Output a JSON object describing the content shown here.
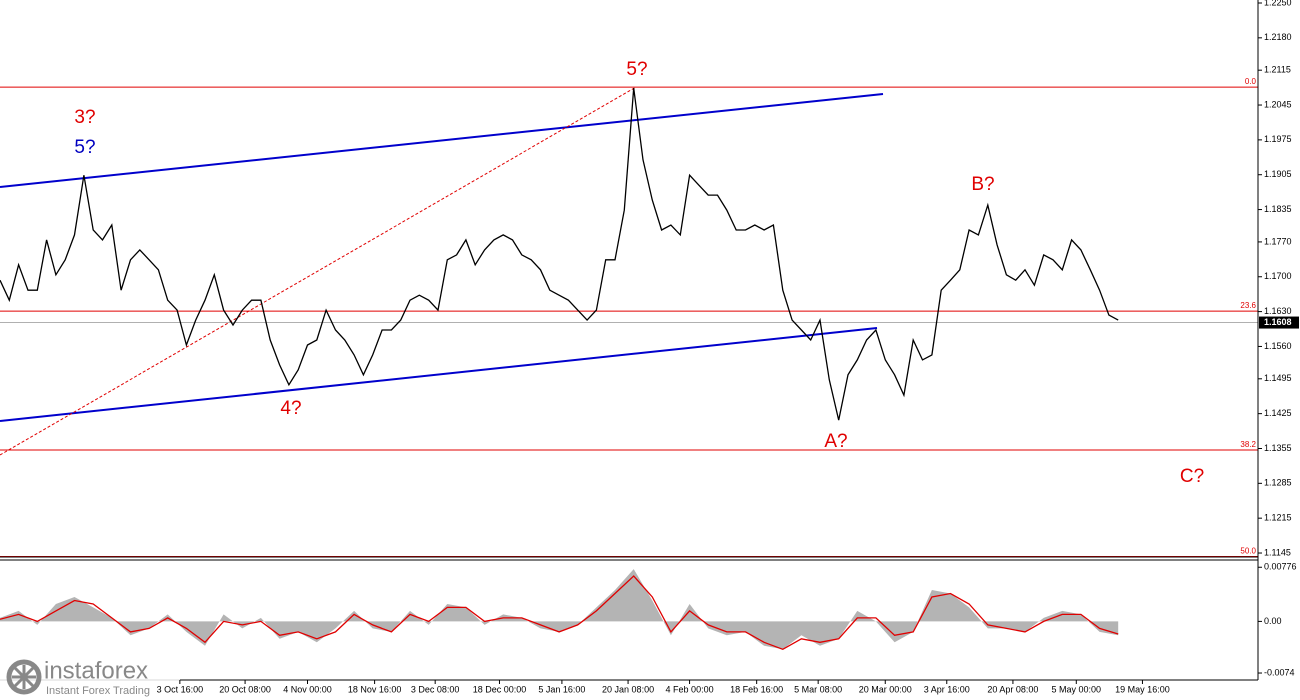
{
  "chart_data": [
    {
      "type": "line",
      "xlim": [
        0,
        135
      ],
      "xticks": [
        {
          "value": 19.3,
          "label": "3 Oct 16:00"
        },
        {
          "value": 26.3,
          "label": "20 Oct 08:00"
        },
        {
          "value": 33,
          "label": "4 Nov 00:00"
        },
        {
          "value": 40.2,
          "label": "18 Nov 16:00"
        },
        {
          "value": 46.7,
          "label": "3 Dec 08:00"
        },
        {
          "value": 53.6,
          "label": "18 Dec 00:00"
        },
        {
          "value": 60.3,
          "label": "5 Jan 16:00"
        },
        {
          "value": 67.4,
          "label": "20 Jan 08:00"
        },
        {
          "value": 74,
          "label": "4 Feb 00:00"
        },
        {
          "value": 81.2,
          "label": "18 Feb 16:00"
        },
        {
          "value": 87.8,
          "label": "5 Mar 08:00"
        },
        {
          "value": 95,
          "label": "20 Mar 00:00"
        },
        {
          "value": 101.6,
          "label": "3 Apr 16:00"
        },
        {
          "value": 108.7,
          "label": "20 Apr 08:00"
        },
        {
          "value": 115.5,
          "label": "5 May 00:00"
        },
        {
          "value": 122.6,
          "label": "19 May 16:00"
        }
      ],
      "ylim": [
        1.1137,
        1.2256
      ],
      "yticks": [
        {
          "value": 1.225,
          "label": "1.2250"
        },
        {
          "value": 1.218,
          "label": "1.2180"
        },
        1.2115,
        1.2045,
        1.1975,
        1.1905,
        1.1835,
        {
          "value": 1.177,
          "label": "1.1770"
        },
        {
          "value": 1.17,
          "label": "1.1700"
        },
        {
          "value": 1.163,
          "label": "1.1630"
        },
        {
          "value": 1.156,
          "label": "1.1560"
        },
        1.1495,
        1.1425,
        1.1355,
        1.1285,
        1.1215,
        1.1145
      ],
      "series": [
        {
          "color": "#000000",
          "values": [
            1.1693,
            1.1653,
            1.1724,
            1.1673,
            1.1673,
            1.1774,
            1.1704,
            1.1734,
            1.1784,
            1.1904,
            1.1794,
            1.1774,
            1.1804,
            1.1673,
            1.1734,
            1.1754,
            1.1734,
            1.1714,
            1.1653,
            1.1633,
            1.1563,
            1.1613,
            1.1653,
            1.1704,
            1.1633,
            1.1603,
            1.1633,
            1.1653,
            1.1653,
            1.1573,
            1.1523,
            1.1483,
            1.1513,
            1.1563,
            1.1573,
            1.1633,
            1.1593,
            1.1573,
            1.1543,
            1.1503,
            1.1543,
            1.1593,
            1.1593,
            1.1613,
            1.1653,
            1.1663,
            1.1653,
            1.1633,
            1.1734,
            1.1744,
            1.1774,
            1.1724,
            1.1754,
            1.1774,
            1.1784,
            1.1774,
            1.1744,
            1.1734,
            1.1714,
            1.1673,
            1.1663,
            1.1653,
            1.1633,
            1.1613,
            1.1633,
            1.1734,
            1.1734,
            1.1834,
            1.2079,
            1.1935,
            1.1854,
            1.1794,
            1.1804,
            1.1784,
            1.1904,
            1.1884,
            1.1864,
            1.1864,
            1.1834,
            1.1794,
            1.1794,
            1.1804,
            1.1794,
            1.1804,
            1.1673,
            1.1613,
            1.1593,
            1.1573,
            1.1613,
            1.1493,
            1.1412,
            1.1503,
            1.1533,
            1.1573,
            1.1593,
            1.1533,
            1.1503,
            1.1462,
            1.1573,
            1.1533,
            1.1543,
            1.1673,
            1.1693,
            1.1714,
            1.1794,
            1.1784,
            1.1844,
            1.1764,
            1.1704,
            1.1693,
            1.1714,
            1.1683,
            1.1744,
            1.1734,
            1.1714,
            1.1774,
            1.1754,
            1.1714,
            1.1673,
            1.1623,
            1.1613
          ]
        }
      ],
      "last_price": 1.1608,
      "levels": [
        {
          "label": "0.0",
          "value": 1.2081
        },
        {
          "label": "23.6",
          "value": 1.1631
        },
        {
          "label": "38.2",
          "value": 1.1352
        },
        {
          "label": "50.0",
          "value": 1.1138
        }
      ],
      "annotations": [
        {
          "text": "3?",
          "color": "#e00000"
        },
        {
          "text": "5?",
          "color": "#0000c0"
        },
        {
          "text": "5?",
          "color": "#e00000"
        },
        {
          "text": "4?",
          "color": "#e00000"
        },
        {
          "text": "A?",
          "color": "#e00000"
        },
        {
          "text": "B?",
          "color": "#e00000"
        },
        {
          "text": "C?",
          "color": "#e00000"
        }
      ]
    },
    {
      "type": "oscillator",
      "xlim": [
        0,
        135
      ],
      "x": [
        0,
        2,
        4,
        6,
        8,
        10,
        12,
        14,
        16,
        18,
        20,
        22,
        24,
        26,
        28,
        30,
        32,
        34,
        36,
        38,
        40,
        42,
        44,
        46,
        48,
        50,
        52,
        54,
        56,
        58,
        60,
        62,
        64,
        66,
        68,
        70,
        72,
        74,
        76,
        78,
        80,
        82,
        84,
        86,
        88,
        90,
        92,
        94,
        96,
        98,
        100,
        102,
        104,
        106,
        108,
        110,
        112,
        114,
        116,
        118,
        120
      ],
      "ylim": [
        -0.0084,
        0.0088
      ],
      "yticks": [
        0.00776,
        {
          "value": 0,
          "label": "0.00"
        },
        -0.0074
      ],
      "series": [
        {
          "color": "#b4b4b4",
          "values": [
            0.0005,
            0.0015,
            -0.0005,
            0.0025,
            0.0035,
            0.002,
            0.0005,
            -0.002,
            -0.001,
            0.001,
            -0.0015,
            -0.0035,
            0.001,
            -0.001,
            0.0005,
            -0.0025,
            -0.0015,
            -0.003,
            -0.001,
            0.0015,
            -0.001,
            -0.0015,
            0.0015,
            -0.0005,
            0.0025,
            0.002,
            -0.0005,
            0.001,
            0.0005,
            -0.001,
            -0.0015,
            -0.0005,
            0.002,
            0.0045,
            0.0075,
            0.003,
            -0.002,
            0.0025,
            -0.001,
            -0.002,
            -0.0015,
            -0.0035,
            -0.004,
            -0.002,
            -0.0035,
            -0.0025,
            0.0015,
            0,
            -0.003,
            -0.0015,
            0.0045,
            0.004,
            0.002,
            -0.001,
            -0.001,
            -0.0015,
            0.0005,
            0.0015,
            0.001,
            -0.0015,
            -0.002
          ]
        },
        {
          "color": "#e00000",
          "values": [
            0.0003,
            0.001,
            0,
            0.0015,
            0.003,
            0.0025,
            0.0005,
            -0.0015,
            -0.001,
            0.0005,
            -0.001,
            -0.003,
            0,
            -0.0005,
            0,
            -0.002,
            -0.0015,
            -0.0025,
            -0.0015,
            0.001,
            -0.0005,
            -0.0015,
            0.001,
            0,
            0.002,
            0.002,
            0,
            0.0005,
            0.0005,
            -0.0005,
            -0.0015,
            -0.0005,
            0.0015,
            0.004,
            0.0065,
            0.0035,
            -0.0015,
            0.0015,
            -0.0005,
            -0.0015,
            -0.0015,
            -0.003,
            -0.004,
            -0.0025,
            -0.003,
            -0.0025,
            0.0005,
            0.0005,
            -0.002,
            -0.0015,
            0.0035,
            0.004,
            0.0025,
            -0.0005,
            -0.001,
            -0.0015,
            0,
            0.001,
            0.001,
            -0.001,
            -0.0018
          ]
        }
      ]
    }
  ],
  "branding": {
    "name": "instaforex",
    "tagline": "Instant Forex Trading"
  }
}
